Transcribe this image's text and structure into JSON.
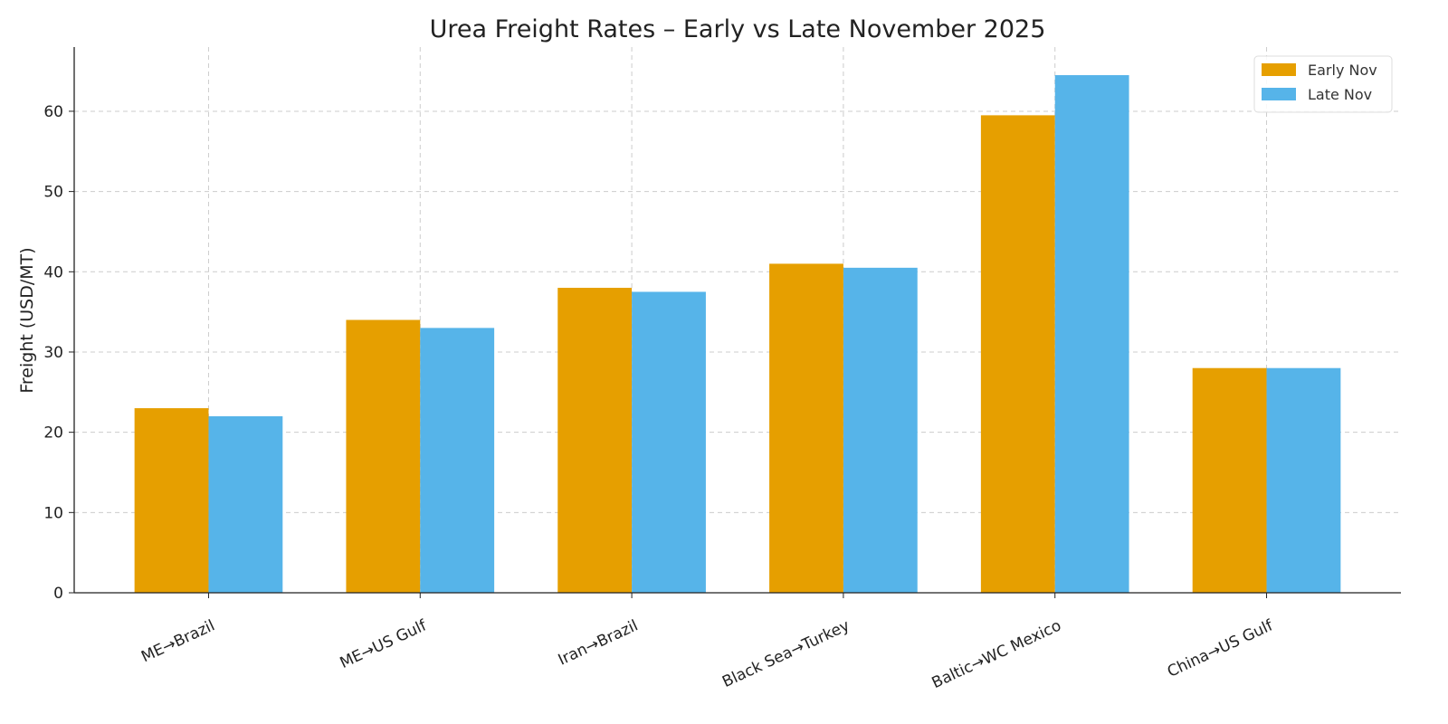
{
  "chart_data": {
    "type": "bar",
    "title": "Urea Freight Rates – Early vs Late November 2025",
    "xlabel": "",
    "ylabel": "Freight (USD/MT)",
    "categories": [
      "ME→Brazil",
      "ME→US Gulf",
      "Iran→Brazil",
      "Black Sea→Turkey",
      "Baltic→WC Mexico",
      "China→US Gulf"
    ],
    "series": [
      {
        "name": "Early Nov",
        "color": "#E69F00",
        "values": [
          23,
          34,
          38,
          41,
          59.5,
          28
        ]
      },
      {
        "name": "Late Nov",
        "color": "#56B4E9",
        "values": [
          22,
          33,
          37.5,
          40.5,
          64.5,
          28
        ]
      }
    ],
    "ylim": [
      0,
      68
    ],
    "yticks": [
      0,
      10,
      20,
      30,
      40,
      50,
      60
    ],
    "grid": true,
    "legend_position": "top-right"
  }
}
